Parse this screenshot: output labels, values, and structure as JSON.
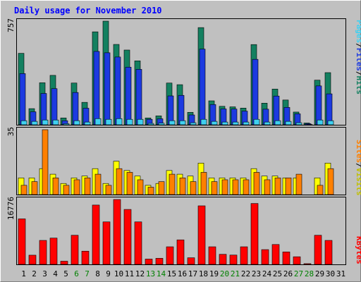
{
  "chart_data": [
    {
      "type": "bar",
      "title": "Daily usage for November 2010",
      "panel": "hits-files-pages",
      "ylim": [
        0,
        757
      ],
      "ymax_label": "757",
      "side_label": [
        "Pages",
        "Files",
        "Hits"
      ],
      "colors": {
        "hits": "#138060",
        "files": "#1c3ae0",
        "pages": "#40d0f0"
      },
      "categories": [
        "1",
        "2",
        "3",
        "4",
        "5",
        "6",
        "7",
        "8",
        "9",
        "10",
        "11",
        "12",
        "13",
        "14",
        "15",
        "16",
        "17",
        "18",
        "19",
        "20",
        "21",
        "22",
        "23",
        "24",
        "25",
        "26",
        "27",
        "28",
        "29",
        "30",
        "31"
      ],
      "series": [
        {
          "name": "Hits",
          "values": [
            522,
            118,
            307,
            361,
            50,
            305,
            164,
            679,
            757,
            587,
            546,
            467,
            50,
            65,
            305,
            293,
            91,
            710,
            175,
            135,
            131,
            122,
            586,
            158,
            261,
            181,
            93,
            13,
            326,
            381,
            0
          ]
        },
        {
          "name": "Files",
          "values": [
            374,
            95,
            229,
            264,
            30,
            236,
            121,
            536,
            526,
            495,
            421,
            405,
            40,
            44,
            211,
            215,
            72,
            553,
            148,
            116,
            115,
            100,
            478,
            114,
            210,
            127,
            80,
            8,
            284,
            226,
            0
          ]
        },
        {
          "name": "Pages",
          "values": [
            30,
            25,
            35,
            35,
            8,
            30,
            20,
            45,
            40,
            45,
            40,
            40,
            10,
            12,
            30,
            30,
            15,
            40,
            25,
            20,
            20,
            20,
            40,
            20,
            30,
            25,
            15,
            2,
            35,
            30,
            0
          ]
        }
      ]
    },
    {
      "type": "bar",
      "panel": "visits-sites",
      "ylim": [
        0,
        35
      ],
      "ymax_label": "35",
      "side_label": [
        "Sites",
        "Visits"
      ],
      "colors": {
        "visits": "#ffff00",
        "sites": "#ff8000"
      },
      "categories": [
        "1",
        "2",
        "3",
        "4",
        "5",
        "6",
        "7",
        "8",
        "9",
        "10",
        "11",
        "12",
        "13",
        "14",
        "15",
        "16",
        "17",
        "18",
        "19",
        "20",
        "21",
        "22",
        "23",
        "24",
        "25",
        "26",
        "27",
        "28",
        "29",
        "30",
        "31"
      ],
      "series": [
        {
          "name": "Visits",
          "values": [
            9,
            9,
            14,
            11,
            6,
            9,
            10,
            14,
            6,
            18,
            13,
            10,
            5,
            6,
            13,
            11,
            10,
            17,
            9,
            9,
            9,
            9,
            14,
            10,
            10,
            9,
            9,
            0,
            9,
            17,
            0
          ]
        },
        {
          "name": "Sites",
          "values": [
            5,
            7,
            35,
            9,
            5,
            8,
            9,
            11,
            5,
            14,
            12,
            8,
            4,
            7,
            11,
            9,
            7,
            12,
            7,
            8,
            8,
            8,
            12,
            8,
            9,
            9,
            11,
            0,
            5,
            14,
            0
          ]
        }
      ]
    },
    {
      "type": "bar",
      "panel": "kbytes",
      "ylim": [
        0,
        16776
      ],
      "ymax_label": "16776",
      "side_label": [
        "KBytes"
      ],
      "colors": {
        "kbytes": "#ff0000"
      },
      "categories": [
        "1",
        "2",
        "3",
        "4",
        "5",
        "6",
        "7",
        "8",
        "9",
        "10",
        "11",
        "12",
        "13",
        "14",
        "15",
        "16",
        "17",
        "18",
        "19",
        "20",
        "21",
        "22",
        "23",
        "24",
        "25",
        "26",
        "27",
        "28",
        "29",
        "30",
        "31"
      ],
      "series": [
        {
          "name": "KBytes",
          "values": [
            11770,
            2380,
            6200,
            6800,
            820,
            7530,
            3420,
            15340,
            10990,
            16776,
            14210,
            10990,
            1370,
            1570,
            4550,
            6340,
            1710,
            15140,
            4550,
            2600,
            2410,
            4550,
            15750,
            3820,
            5140,
            3220,
            1970,
            190,
            7530,
            6200,
            0
          ]
        }
      ]
    }
  ],
  "x_axis": {
    "labels": [
      "1",
      "2",
      "3",
      "4",
      "5",
      "6",
      "7",
      "8",
      "9",
      "10",
      "11",
      "12",
      "13",
      "14",
      "15",
      "16",
      "17",
      "18",
      "19",
      "20",
      "21",
      "22",
      "23",
      "24",
      "25",
      "26",
      "27",
      "28",
      "29",
      "30",
      "31"
    ],
    "weekend_days": [
      6,
      7,
      13,
      14,
      20,
      21,
      27,
      28
    ],
    "weekday_color": "#000000",
    "weekend_color": "#008000"
  },
  "colors": {
    "background": "#c0c0c0",
    "frame_light": "#ffffff",
    "frame_dark": "#808080",
    "title": "#0000ff",
    "text": "#000000"
  }
}
